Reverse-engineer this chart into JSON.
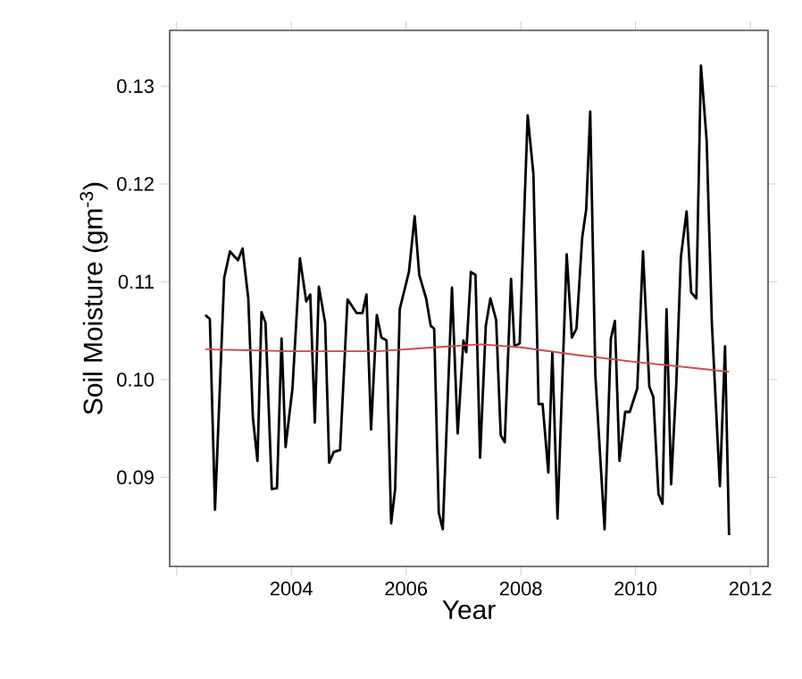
{
  "chart_data": {
    "type": "line",
    "xlabel": "Year",
    "ylabel": "Soil Moisture (gm$^{-3}$)",
    "xlim": [
      2001.88,
      2012.31
    ],
    "ylim": [
      0.0809,
      0.1357
    ],
    "xticks": [
      {
        "value": 2002,
        "label": null
      },
      2004,
      2006,
      2008,
      2010,
      2012
    ],
    "yticks": [
      0.09,
      {
        "value": 0.1,
        "label": "0.10"
      },
      0.11,
      0.12,
      0.13
    ],
    "grid": false,
    "legend": false,
    "marker": "none",
    "line_style": "solid",
    "tick_labels": "xy",
    "series": [
      {
        "color": "#000000",
        "x": [
          2002.5,
          2002.58,
          2002.67,
          2002.83,
          2002.93,
          2003.07,
          2003.15,
          2003.25,
          2003.33,
          2003.41,
          2003.48,
          2003.55,
          2003.66,
          2003.75,
          2003.83,
          2003.9,
          2004.02,
          2004.15,
          2004.26,
          2004.33,
          2004.41,
          2004.48,
          2004.59,
          2004.66,
          2004.74,
          2004.85,
          2004.98,
          2005.14,
          2005.24,
          2005.31,
          2005.39,
          2005.49,
          2005.57,
          2005.66,
          2005.74,
          2005.81,
          2005.89,
          2006.05,
          2006.15,
          2006.23,
          2006.35,
          2006.43,
          2006.49,
          2006.57,
          2006.64,
          2006.8,
          2006.9,
          2007.0,
          2007.05,
          2007.13,
          2007.21,
          2007.29,
          2007.39,
          2007.47,
          2007.57,
          2007.65,
          2007.72,
          2007.83,
          2007.89,
          2007.98,
          2008.12,
          2008.22,
          2008.31,
          2008.38,
          2008.48,
          2008.55,
          2008.64,
          2008.8,
          2008.89,
          2008.97,
          2009.07,
          2009.14,
          2009.21,
          2009.3,
          2009.46,
          2009.57,
          2009.64,
          2009.72,
          2009.82,
          2009.9,
          2010.03,
          2010.13,
          2010.24,
          2010.31,
          2010.4,
          2010.47,
          2010.54,
          2010.62,
          2010.71,
          2010.79,
          2010.89,
          2010.97,
          2011.06,
          2011.14,
          2011.24,
          2011.33,
          2011.47,
          2011.56,
          2011.63
        ],
        "values": [
          0.1066,
          0.1062,
          0.0867,
          0.1104,
          0.1131,
          0.1122,
          0.1134,
          0.1083,
          0.0961,
          0.0917,
          0.1069,
          0.1058,
          0.0888,
          0.0889,
          0.1042,
          0.0931,
          0.0991,
          0.1124,
          0.108,
          0.1087,
          0.0956,
          0.1095,
          0.1058,
          0.0915,
          0.0926,
          0.0928,
          0.1082,
          0.1068,
          0.1068,
          0.1087,
          0.0949,
          0.1066,
          0.1043,
          0.104,
          0.0853,
          0.0888,
          0.1072,
          0.111,
          0.1167,
          0.1107,
          0.1083,
          0.1055,
          0.1052,
          0.0864,
          0.0847,
          0.1094,
          0.0945,
          0.104,
          0.1028,
          0.111,
          0.1107,
          0.092,
          0.1055,
          0.1083,
          0.1061,
          0.0943,
          0.0936,
          0.1103,
          0.1034,
          0.1037,
          0.127,
          0.121,
          0.0975,
          0.0975,
          0.0905,
          0.1028,
          0.0858,
          0.1128,
          0.1043,
          0.1052,
          0.1145,
          0.1174,
          0.1274,
          0.1004,
          0.0847,
          0.1042,
          0.106,
          0.0917,
          0.0967,
          0.0967,
          0.0991,
          0.1131,
          0.0993,
          0.0982,
          0.0883,
          0.0873,
          0.1072,
          0.0893,
          0.0995,
          0.1125,
          0.1172,
          0.1089,
          0.1083,
          0.1321,
          0.1244,
          0.1058,
          0.0891,
          0.1034,
          0.0841
        ]
      },
      {
        "type": "line",
        "color": "#d04848",
        "x": [
          2002.5,
          2004,
          2005.5,
          2006.5,
          2007.3,
          2008,
          2009,
          2010,
          2011,
          2011.63
        ],
        "values": [
          0.1031,
          0.1029,
          0.1029,
          0.1033,
          0.1036,
          0.1033,
          0.1025,
          0.1018,
          0.1012,
          0.1008
        ]
      }
    ]
  }
}
